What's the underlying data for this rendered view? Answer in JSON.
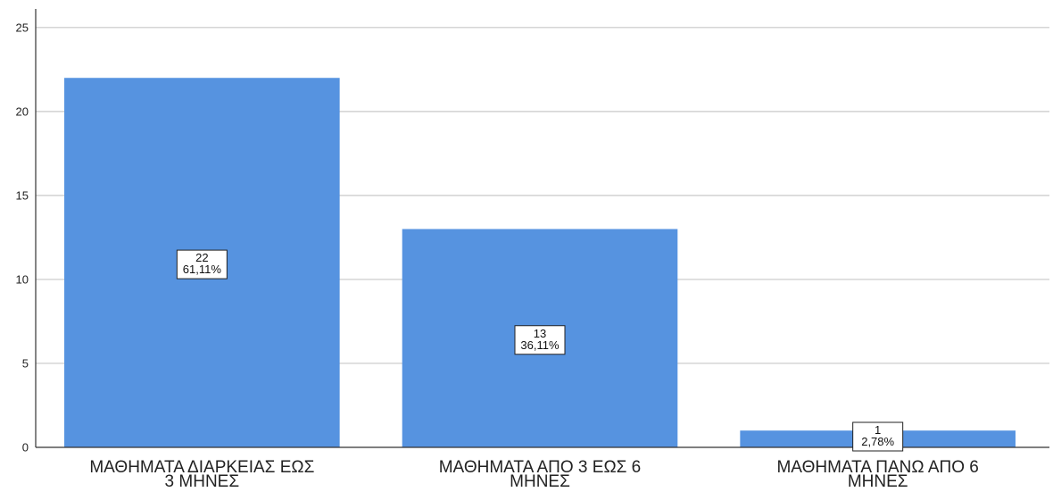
{
  "chart_data": {
    "type": "bar",
    "categories": [
      [
        "ΜΑΘΗΜΑΤΑ ΔΙΑΡΚΕΙΑΣ ΕΩΣ",
        "3 ΜΗΝΕΣ"
      ],
      [
        "ΜΑΘΗΜΑΤΑ ΑΠΟ 3 ΕΩΣ 6",
        "ΜΗΝΕΣ"
      ],
      [
        "ΜΑΘΗΜΑΤΑ ΠΑΝΩ ΑΠΟ 6",
        "ΜΗΝΕΣ"
      ]
    ],
    "values": [
      22,
      13,
      1
    ],
    "data_labels": [
      [
        "22",
        "61,11%"
      ],
      [
        "13",
        "36,11%"
      ],
      [
        "1",
        "2,78%"
      ]
    ],
    "yticks": [
      0,
      5,
      10,
      15,
      20,
      25
    ],
    "ylim": [
      0,
      26
    ],
    "grid": true,
    "bar_color": "#5693e0",
    "title": "",
    "xlabel": "",
    "ylabel": ""
  }
}
